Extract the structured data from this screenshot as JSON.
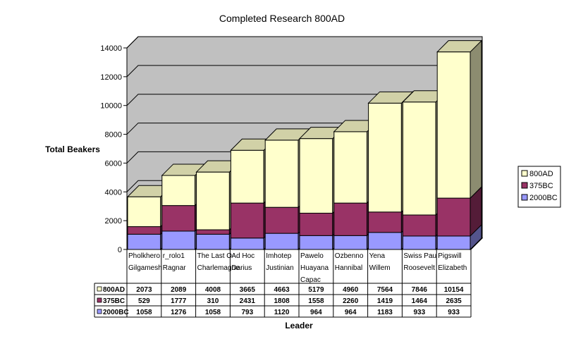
{
  "chart_data": {
    "type": "bar",
    "stacked": true,
    "three_d": true,
    "title": "Completed Research 800AD",
    "xlabel": "Leader",
    "ylabel": "Total Beakers",
    "ylim": [
      0,
      14000
    ],
    "yticks": [
      0,
      2000,
      4000,
      6000,
      8000,
      10000,
      12000,
      14000
    ],
    "grid": true,
    "legend_position": "right",
    "categories": [
      [
        "Pholkhero",
        "Gilgamesh"
      ],
      [
        "r_rolo1",
        "Ragnar"
      ],
      [
        "The Last O",
        "Charlemagne"
      ],
      [
        "Ad Hoc",
        "Darius"
      ],
      [
        "Imhotep",
        "Justinian"
      ],
      [
        "Pawelo",
        "Huayana",
        "Capac"
      ],
      [
        "Ozbenno",
        "Hannibal"
      ],
      [
        "Yena",
        "Willem"
      ],
      [
        "Swiss Pau",
        "Roosevelt"
      ],
      [
        "Pigswill",
        "Elizabeth"
      ]
    ],
    "series": [
      {
        "name": "2000BC",
        "color": "#9999ff",
        "values": [
          1058,
          1276,
          1058,
          793,
          1120,
          964,
          964,
          1183,
          933,
          933
        ]
      },
      {
        "name": "375BC",
        "color": "#993366",
        "values": [
          529,
          1777,
          310,
          2431,
          1808,
          1558,
          2260,
          1419,
          1464,
          2635
        ]
      },
      {
        "name": "800AD",
        "color": "#ffffcc",
        "values": [
          2073,
          2089,
          4008,
          3665,
          4663,
          5179,
          4960,
          7564,
          7846,
          10154
        ]
      }
    ],
    "legend_order": [
      "800AD",
      "375BC",
      "2000BC"
    ],
    "table_order": [
      "800AD",
      "375BC",
      "2000BC"
    ]
  }
}
